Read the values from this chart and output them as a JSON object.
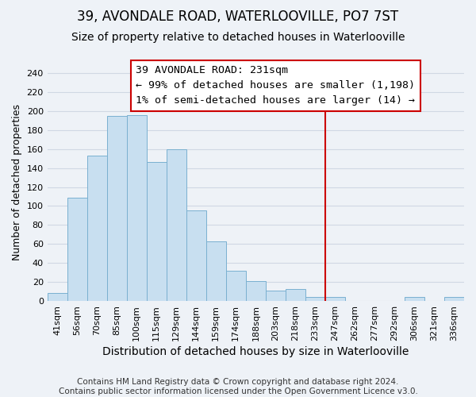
{
  "title": "39, AVONDALE ROAD, WATERLOOVILLE, PO7 7ST",
  "subtitle": "Size of property relative to detached houses in Waterlooville",
  "xlabel": "Distribution of detached houses by size in Waterlooville",
  "ylabel": "Number of detached properties",
  "footer_line1": "Contains HM Land Registry data © Crown copyright and database right 2024.",
  "footer_line2": "Contains public sector information licensed under the Open Government Licence v3.0.",
  "bin_labels": [
    "41sqm",
    "56sqm",
    "70sqm",
    "85sqm",
    "100sqm",
    "115sqm",
    "129sqm",
    "144sqm",
    "159sqm",
    "174sqm",
    "188sqm",
    "203sqm",
    "218sqm",
    "233sqm",
    "247sqm",
    "262sqm",
    "277sqm",
    "292sqm",
    "306sqm",
    "321sqm",
    "336sqm"
  ],
  "bar_heights": [
    8,
    109,
    153,
    195,
    196,
    146,
    160,
    95,
    63,
    32,
    21,
    11,
    13,
    4,
    4,
    0,
    0,
    0,
    4,
    0,
    4
  ],
  "bar_color": "#c8dff0",
  "bar_edge_color": "#7ab0d0",
  "vline_x_index": 13,
  "vline_color": "#cc0000",
  "annotation_title": "39 AVONDALE ROAD: 231sqm",
  "annotation_line1": "← 99% of detached houses are smaller (1,198)",
  "annotation_line2": "1% of semi-detached houses are larger (14) →",
  "annotation_box_color": "#ffffff",
  "annotation_box_edge_color": "#cc0000",
  "ylim": [
    0,
    250
  ],
  "yticks": [
    0,
    20,
    40,
    60,
    80,
    100,
    120,
    140,
    160,
    180,
    200,
    220,
    240
  ],
  "background_color": "#eef2f7",
  "plot_bg_color": "#eef2f7",
  "grid_color": "#d0d8e4",
  "title_fontsize": 12,
  "subtitle_fontsize": 10,
  "xlabel_fontsize": 10,
  "ylabel_fontsize": 9,
  "tick_fontsize": 8,
  "annotation_title_fontsize": 10,
  "annotation_body_fontsize": 9.5,
  "footer_fontsize": 7.5
}
